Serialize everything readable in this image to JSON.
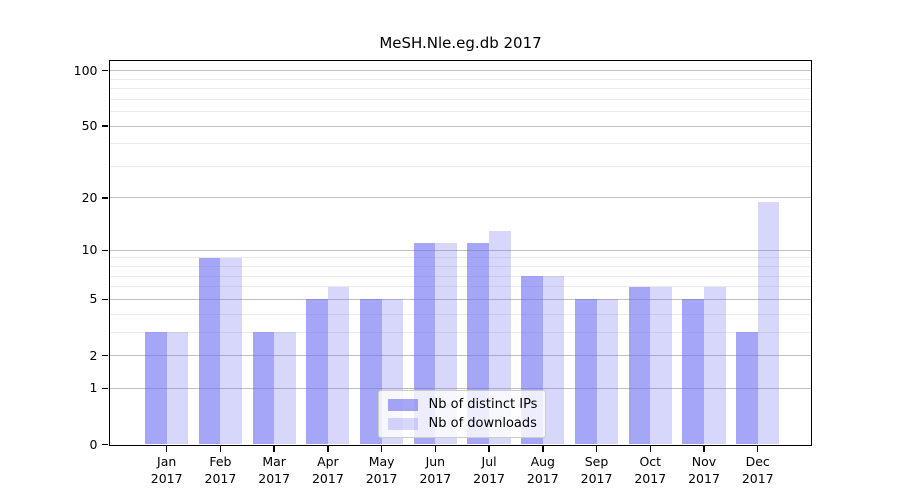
{
  "title": "MeSH.Nle.eg.db 2017",
  "chart_data": {
    "type": "bar",
    "title": "MeSH.Nle.eg.db 2017",
    "xlabel": "",
    "ylabel": "",
    "categories": [
      "Jan",
      "Feb",
      "Mar",
      "Apr",
      "May",
      "Jun",
      "Jul",
      "Aug",
      "Sep",
      "Oct",
      "Nov",
      "Dec"
    ],
    "category_year": "2017",
    "series": [
      {
        "name": "Nb of distinct IPs",
        "color": "rgba(112,112,240,0.62)",
        "values": [
          3,
          9,
          3,
          5,
          5,
          11,
          11,
          7,
          5,
          6,
          5,
          3
        ]
      },
      {
        "name": "Nb of downloads",
        "color": "rgba(112,112,240,0.28)",
        "values": [
          3,
          9,
          3,
          6,
          5,
          11,
          13,
          7,
          5,
          6,
          6,
          19
        ]
      }
    ],
    "yscale": "log1p",
    "y_tick_labels": [
      "0",
      "1",
      "2",
      "5",
      "10",
      "20",
      "50",
      "100"
    ],
    "y_major_ticks": [
      0,
      1,
      2,
      5,
      10,
      20,
      50,
      100
    ],
    "y_minor_gridlines": [
      3,
      4,
      6,
      7,
      8,
      9,
      30,
      40,
      60,
      70,
      80,
      90
    ],
    "ylim": [
      0,
      114
    ],
    "grid": "on",
    "legend_position": "lower-center"
  },
  "colors": {
    "bar_distinct_ips": "rgba(112,112,240,0.62)",
    "bar_downloads": "rgba(112,112,240,0.28)",
    "grid_major": "#c0c0c0",
    "grid_minor": "#eaeaea",
    "spine": "#000000",
    "legend_border": "#cccccc",
    "text": "#000000"
  }
}
